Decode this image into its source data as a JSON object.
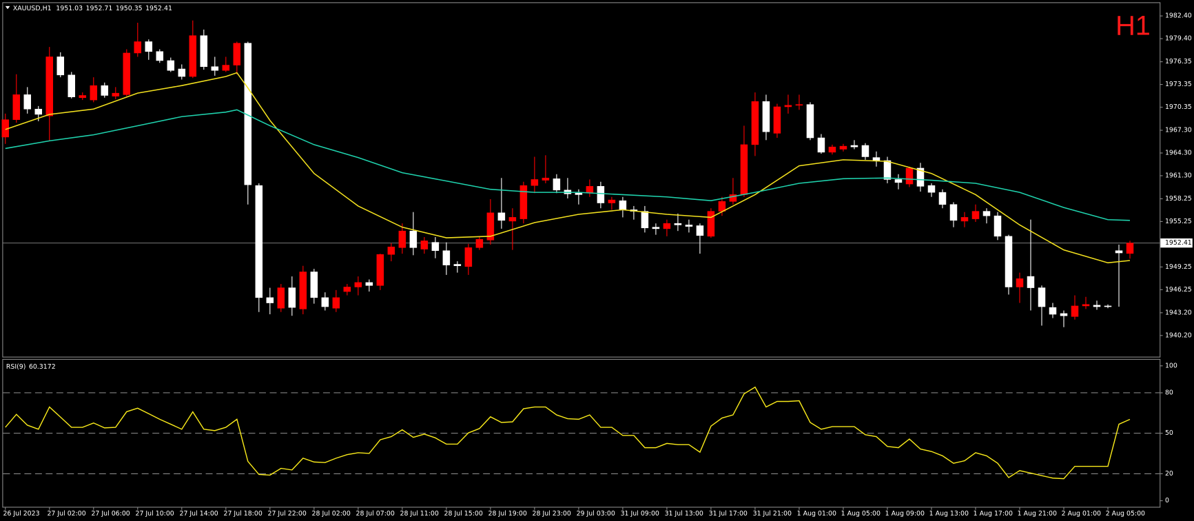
{
  "chart_data": [
    {
      "type": "candlestick",
      "title": "XAUUSD,H1",
      "annotation": "H1",
      "up_color": "#ff0000",
      "down_color": "#ffffff",
      "categories": [
        "26 Jul 2023",
        null,
        null,
        null,
        "27 Jul 02:00",
        null,
        null,
        null,
        "27 Jul 06:00",
        null,
        null,
        null,
        "27 Jul 10:00",
        null,
        null,
        null,
        "27 Jul 14:00",
        null,
        null,
        null,
        "27 Jul 18:00",
        null,
        null,
        null,
        "27 Jul 22:00",
        null,
        null,
        null,
        "28 Jul 02:00",
        null,
        null,
        null,
        "28 Jul 07:00",
        null,
        null,
        null,
        "28 Jul 11:00",
        null,
        null,
        null,
        "28 Jul 15:00",
        null,
        null,
        null,
        "28 Jul 19:00",
        null,
        null,
        null,
        "28 Jul 23:00",
        null,
        null,
        null,
        "29 Jul 03:00",
        null,
        null,
        null,
        "31 Jul 09:00",
        null,
        null,
        null,
        "31 Jul 13:00",
        null,
        null,
        null,
        "31 Jul 17:00",
        null,
        null,
        null,
        "31 Jul 21:00",
        null,
        null,
        null,
        "1 Aug 01:00",
        null,
        null,
        null,
        "1 Aug 05:00",
        null,
        null,
        null,
        "1 Aug 09:00",
        null,
        null,
        null,
        "1 Aug 13:00",
        null,
        null,
        null,
        "1 Aug 17:00",
        null,
        null,
        null,
        "1 Aug 21:00",
        null,
        null,
        null,
        "2 Aug 01:00",
        null,
        null,
        null,
        "2 Aug 05:00",
        null,
        null
      ],
      "ohlc": [
        [
          1966.4,
          1969.5,
          1965.5,
          1968.7
        ],
        [
          1968.7,
          1974.7,
          1968.3,
          1972.0
        ],
        [
          1972.0,
          1973.0,
          1969.5,
          1970.1
        ],
        [
          1970.1,
          1970.5,
          1968.5,
          1969.4
        ],
        [
          1969.2,
          1978.3,
          1965.9,
          1977.0
        ],
        [
          1977.0,
          1977.6,
          1974.3,
          1974.6
        ],
        [
          1974.6,
          1975.0,
          1971.5,
          1971.7
        ],
        [
          1971.6,
          1972.3,
          1971.3,
          1971.9
        ],
        [
          1971.3,
          1974.3,
          1971.0,
          1973.2
        ],
        [
          1973.2,
          1973.6,
          1971.6,
          1971.9
        ],
        [
          1971.8,
          1973.0,
          1971.4,
          1972.2
        ],
        [
          1972.0,
          1978.0,
          1971.8,
          1977.5
        ],
        [
          1977.5,
          1981.5,
          1977.0,
          1979.0
        ],
        [
          1979.0,
          1979.3,
          1976.6,
          1977.7
        ],
        [
          1977.7,
          1978.0,
          1976.2,
          1976.5
        ],
        [
          1976.5,
          1976.9,
          1975.0,
          1975.2
        ],
        [
          1975.4,
          1976.0,
          1974.0,
          1974.4
        ],
        [
          1974.4,
          1981.8,
          1974.2,
          1979.8
        ],
        [
          1979.8,
          1980.6,
          1975.3,
          1975.7
        ],
        [
          1975.7,
          1977.0,
          1974.5,
          1975.2
        ],
        [
          1975.2,
          1977.0,
          1975.0,
          1975.9
        ],
        [
          1975.9,
          1979.0,
          1974.7,
          1978.8
        ],
        [
          1978.8,
          1979.0,
          1957.5,
          1960.1
        ],
        [
          1960.0,
          1960.3,
          1943.3,
          1945.2
        ],
        [
          1945.2,
          1946.5,
          1943.0,
          1944.5
        ],
        [
          1943.8,
          1947.0,
          1943.3,
          1946.5
        ],
        [
          1946.5,
          1948.0,
          1942.8,
          1943.9
        ],
        [
          1943.7,
          1949.4,
          1943.0,
          1948.6
        ],
        [
          1948.6,
          1949.0,
          1944.4,
          1945.2
        ],
        [
          1945.2,
          1945.9,
          1943.5,
          1944.0
        ],
        [
          1943.8,
          1946.2,
          1943.3,
          1945.2
        ],
        [
          1946.0,
          1947.0,
          1945.5,
          1946.6
        ],
        [
          1946.6,
          1948.0,
          1945.5,
          1947.2
        ],
        [
          1947.2,
          1947.6,
          1946.0,
          1946.8
        ],
        [
          1946.8,
          1951.0,
          1946.2,
          1950.9
        ],
        [
          1950.9,
          1952.4,
          1950.0,
          1951.9
        ],
        [
          1951.8,
          1955.0,
          1951.0,
          1954.0
        ],
        [
          1954.0,
          1956.5,
          1950.8,
          1951.8
        ],
        [
          1951.6,
          1953.2,
          1951.0,
          1952.7
        ],
        [
          1952.5,
          1953.2,
          1950.4,
          1951.4
        ],
        [
          1951.4,
          1952.5,
          1948.2,
          1949.5
        ],
        [
          1949.6,
          1950.0,
          1948.5,
          1949.4
        ],
        [
          1949.3,
          1952.3,
          1948.2,
          1951.8
        ],
        [
          1951.8,
          1953.3,
          1951.5,
          1952.9
        ],
        [
          1952.8,
          1958.2,
          1952.2,
          1956.4
        ],
        [
          1956.4,
          1961.0,
          1954.3,
          1955.4
        ],
        [
          1955.3,
          1957.0,
          1951.5,
          1955.8
        ],
        [
          1955.6,
          1960.5,
          1955.0,
          1960.0
        ],
        [
          1960.0,
          1963.8,
          1959.0,
          1960.8
        ],
        [
          1960.7,
          1964.0,
          1960.3,
          1961.0
        ],
        [
          1960.9,
          1961.5,
          1959.0,
          1959.4
        ],
        [
          1959.4,
          1961.0,
          1958.3,
          1958.9
        ],
        [
          1959.0,
          1959.5,
          1957.5,
          1958.8
        ],
        [
          1959.1,
          1960.8,
          1958.5,
          1959.9
        ],
        [
          1959.9,
          1960.5,
          1957.0,
          1957.7
        ],
        [
          1957.7,
          1958.5,
          1956.8,
          1958.1
        ],
        [
          1958.0,
          1958.5,
          1955.8,
          1956.8
        ],
        [
          1956.8,
          1957.3,
          1955.5,
          1956.6
        ],
        [
          1956.6,
          1957.3,
          1953.8,
          1954.4
        ],
        [
          1954.5,
          1955.0,
          1953.5,
          1954.3
        ],
        [
          1954.3,
          1955.5,
          1953.3,
          1955.0
        ],
        [
          1955.0,
          1956.3,
          1954.0,
          1954.8
        ],
        [
          1954.8,
          1955.5,
          1953.8,
          1954.6
        ],
        [
          1954.7,
          1955.0,
          1951.0,
          1953.4
        ],
        [
          1953.3,
          1957.0,
          1953.1,
          1956.6
        ],
        [
          1956.6,
          1958.5,
          1956.0,
          1957.9
        ],
        [
          1957.9,
          1961.0,
          1957.5,
          1958.8
        ],
        [
          1958.8,
          1967.9,
          1958.5,
          1965.4
        ],
        [
          1965.4,
          1972.3,
          1963.9,
          1971.1
        ],
        [
          1971.1,
          1972.0,
          1966.0,
          1967.1
        ],
        [
          1966.9,
          1970.8,
          1966.3,
          1970.4
        ],
        [
          1970.4,
          1972.0,
          1969.5,
          1970.6
        ],
        [
          1970.6,
          1972.0,
          1970.0,
          1970.7
        ],
        [
          1970.7,
          1971.0,
          1966.0,
          1966.3
        ],
        [
          1966.3,
          1966.8,
          1964.2,
          1964.4
        ],
        [
          1964.4,
          1965.4,
          1964.1,
          1965.1
        ],
        [
          1964.8,
          1965.5,
          1964.5,
          1965.2
        ],
        [
          1965.3,
          1966.0,
          1964.8,
          1965.1
        ],
        [
          1965.3,
          1965.6,
          1963.4,
          1963.8
        ],
        [
          1963.7,
          1964.5,
          1962.5,
          1963.3
        ],
        [
          1963.3,
          1963.8,
          1960.3,
          1960.8
        ],
        [
          1960.8,
          1961.5,
          1959.5,
          1960.4
        ],
        [
          1960.2,
          1962.5,
          1959.8,
          1962.3
        ],
        [
          1962.3,
          1963.0,
          1959.2,
          1959.9
        ],
        [
          1960.0,
          1960.3,
          1958.5,
          1959.1
        ],
        [
          1959.1,
          1959.5,
          1957.0,
          1957.5
        ],
        [
          1957.5,
          1957.8,
          1954.5,
          1955.4
        ],
        [
          1955.3,
          1956.5,
          1954.5,
          1955.8
        ],
        [
          1955.6,
          1957.5,
          1955.2,
          1956.6
        ],
        [
          1956.6,
          1957.0,
          1955.0,
          1956.0
        ],
        [
          1956.0,
          1956.5,
          1952.8,
          1953.3
        ],
        [
          1953.3,
          1953.5,
          1945.6,
          1946.6
        ],
        [
          1946.6,
          1948.5,
          1944.5,
          1947.7
        ],
        [
          1948.0,
          1955.5,
          1943.5,
          1946.5
        ],
        [
          1946.5,
          1946.8,
          1941.5,
          1944.0
        ],
        [
          1943.9,
          1944.5,
          1942.5,
          1943.0
        ],
        [
          1943.1,
          1943.5,
          1941.3,
          1942.8
        ],
        [
          1942.7,
          1945.5,
          1942.3,
          1944.1
        ],
        [
          1944.1,
          1945.3,
          1943.7,
          1944.3
        ],
        [
          1944.2,
          1944.8,
          1943.6,
          1944.0
        ],
        [
          1944.1,
          1944.3,
          1943.8,
          1944.0
        ],
        [
          1951.4,
          1952.2,
          1944.0,
          1951.1
        ],
        [
          1951.03,
          1952.71,
          1950.35,
          1952.41
        ]
      ],
      "series": [
        {
          "color": "#f2e01e",
          "x": [
            0,
            4,
            8,
            12,
            16,
            20,
            21,
            22,
            24,
            28,
            32,
            36,
            40,
            44,
            48,
            52,
            56,
            60,
            64,
            68,
            72,
            76,
            80,
            84,
            88,
            92,
            96,
            100,
            102
          ],
          "values": [
            1967.4,
            1969.4,
            1970.1,
            1972.2,
            1973.2,
            1974.4,
            1974.9,
            1972.9,
            1968.6,
            1961.6,
            1957.3,
            1954.5,
            1953.1,
            1953.3,
            1955.1,
            1956.2,
            1956.8,
            1956.2,
            1955.8,
            1958.8,
            1962.6,
            1963.4,
            1963.2,
            1961.6,
            1958.8,
            1954.8,
            1951.5,
            1949.8,
            1950.1
          ]
        },
        {
          "color": "#1fd2ad",
          "x": [
            0,
            4,
            8,
            12,
            16,
            20,
            21,
            24,
            28,
            32,
            36,
            40,
            44,
            48,
            52,
            56,
            60,
            64,
            68,
            72,
            76,
            80,
            84,
            88,
            92,
            96,
            100,
            102
          ],
          "values": [
            1964.9,
            1965.9,
            1966.7,
            1967.9,
            1969.1,
            1969.7,
            1970.0,
            1967.9,
            1965.4,
            1963.7,
            1961.7,
            1960.6,
            1959.5,
            1959.1,
            1959.1,
            1958.8,
            1958.5,
            1958.0,
            1959.1,
            1960.3,
            1960.9,
            1961.0,
            1960.7,
            1960.3,
            1959.1,
            1957.1,
            1955.5,
            1955.4
          ]
        }
      ],
      "ylim": [
        1937.4,
        1984.0
      ],
      "yticks": [
        {
          "value": 1982.4,
          "label": "1982.40"
        },
        {
          "value": 1979.4,
          "label": "1979.40"
        },
        1976.35,
        1973.35,
        1970.35,
        {
          "value": 1967.3,
          "label": "1967.30"
        },
        {
          "value": 1964.3,
          "label": "1964.30"
        },
        {
          "value": 1961.3,
          "label": "1961.30"
        },
        1958.25,
        1955.25,
        1949.25,
        1946.25,
        {
          "value": 1943.2,
          "label": "1943.20"
        },
        {
          "value": 1940.2,
          "label": "1940.20"
        }
      ]
    },
    {
      "type": "line",
      "title": "RSI(9)",
      "series": [
        {
          "color": "#f7e81a",
          "values": [
            54.4,
            64,
            56,
            53,
            69.5,
            62,
            54.4,
            54.4,
            57.6,
            54,
            54.4,
            66,
            68.6,
            64.5,
            60.4,
            56.7,
            53,
            65.9,
            53,
            52,
            54.4,
            60.4,
            29.2,
            19.5,
            19,
            24,
            22.8,
            31.5,
            28.7,
            28.3,
            31.5,
            34.2,
            35.6,
            35.1,
            45.2,
            47.5,
            52.6,
            47,
            49.4,
            46.6,
            42,
            42,
            50.3,
            53.5,
            62.2,
            58,
            58.5,
            68.2,
            69.5,
            69.5,
            63.6,
            60.8,
            60.4,
            63.6,
            54.4,
            54.4,
            48.4,
            48.4,
            39.3,
            39.3,
            42.5,
            41.6,
            41.6,
            36,
            55.3,
            61.3,
            63.6,
            79.2,
            84.2,
            69.5,
            73.6,
            73.6,
            74.1,
            58,
            53,
            54.9,
            54.9,
            54.9,
            48.9,
            47.5,
            40.2,
            39.3,
            45.7,
            38.3,
            36.5,
            33.3,
            27.8,
            29.6,
            35.6,
            33.3,
            27.8,
            17.2,
            22.3,
            20.5,
            18.6,
            16.8,
            16.3,
            25.5,
            25.5,
            25.5,
            25.5,
            56.7,
            60.3172
          ]
        }
      ],
      "levels": [
        80,
        50,
        20
      ],
      "ylim": [
        0,
        100
      ],
      "yticks": [
        100,
        80,
        50,
        20,
        0
      ]
    }
  ]
}
